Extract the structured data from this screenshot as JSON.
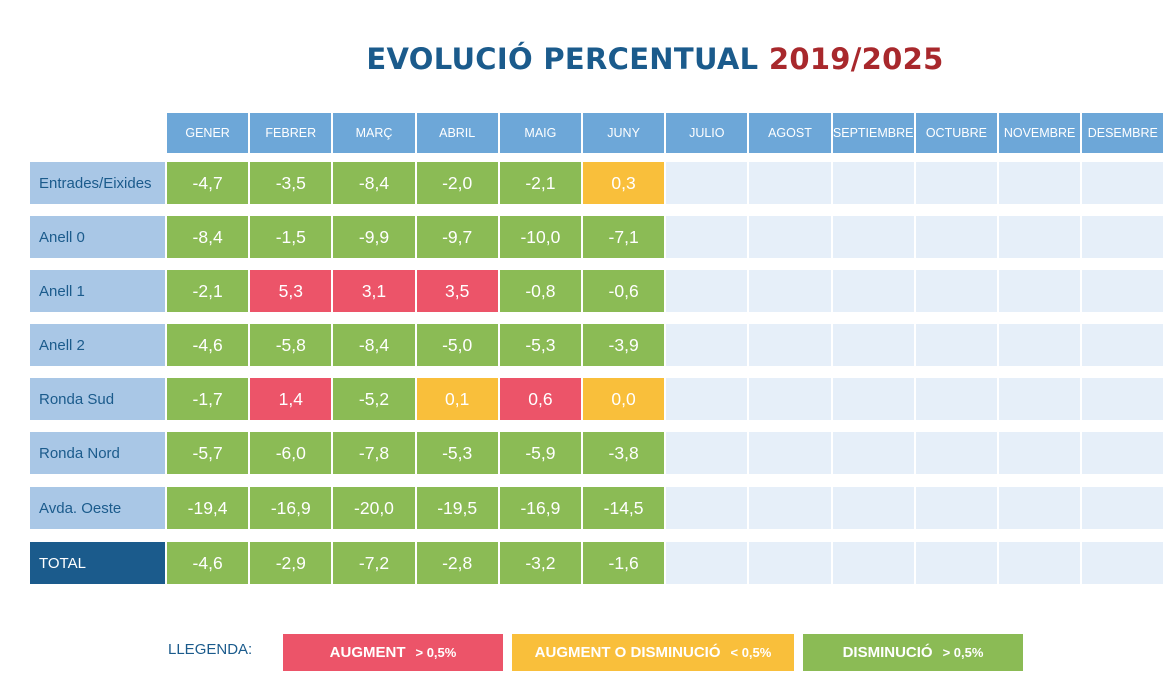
{
  "title": {
    "main": "EVOLUCIÓ PERCENTUAL",
    "years": "2019/2025"
  },
  "colors": {
    "decrease": "#8bbb55",
    "neutral": "#f9bf3b",
    "increase": "#ec5469",
    "header": "#6da7d8",
    "row_label": "#a9c7e6",
    "total_label": "#1b5b8c",
    "empty": "#e6eff9"
  },
  "chart_data": {
    "type": "table",
    "columns": [
      "GENER",
      "FEBRER",
      "MARÇ",
      "ABRIL",
      "MAIG",
      "JUNY",
      "JULIO",
      "AGOST",
      "SEPTIEMBRE",
      "OCTUBRE",
      "NOVEMBRE",
      "DESEMBRE"
    ],
    "rows": [
      {
        "label": "Entrades/Eixides",
        "values": [
          "-4,7",
          "-3,5",
          "-8,4",
          "-2,0",
          "-2,1",
          "0,3"
        ],
        "status": [
          "decrease",
          "decrease",
          "decrease",
          "decrease",
          "decrease",
          "neutral"
        ]
      },
      {
        "label": "Anell 0",
        "values": [
          "-8,4",
          "-1,5",
          "-9,9",
          "-9,7",
          "-10,0",
          "-7,1"
        ],
        "status": [
          "decrease",
          "decrease",
          "decrease",
          "decrease",
          "decrease",
          "decrease"
        ]
      },
      {
        "label": "Anell 1",
        "values": [
          "-2,1",
          "5,3",
          "3,1",
          "3,5",
          "-0,8",
          "-0,6"
        ],
        "status": [
          "decrease",
          "increase",
          "increase",
          "increase",
          "decrease",
          "decrease"
        ]
      },
      {
        "label": "Anell 2",
        "values": [
          "-4,6",
          "-5,8",
          "-8,4",
          "-5,0",
          "-5,3",
          "-3,9"
        ],
        "status": [
          "decrease",
          "decrease",
          "decrease",
          "decrease",
          "decrease",
          "decrease"
        ]
      },
      {
        "label": "Ronda Sud",
        "values": [
          "-1,7",
          "1,4",
          "-5,2",
          "0,1",
          "0,6",
          "0,0"
        ],
        "status": [
          "decrease",
          "increase",
          "decrease",
          "neutral",
          "increase",
          "neutral"
        ]
      },
      {
        "label": "Ronda Nord",
        "values": [
          "-5,7",
          "-6,0",
          "-7,8",
          "-5,3",
          "-5,9",
          "-3,8"
        ],
        "status": [
          "decrease",
          "decrease",
          "decrease",
          "decrease",
          "decrease",
          "decrease"
        ]
      },
      {
        "label": "Avda. Oeste",
        "values": [
          "-19,4",
          "-16,9",
          "-20,0",
          "-19,5",
          "-16,9",
          "-14,5"
        ],
        "status": [
          "decrease",
          "decrease",
          "decrease",
          "decrease",
          "decrease",
          "decrease"
        ]
      },
      {
        "label": "TOTAL",
        "values": [
          "-4,6",
          "-2,9",
          "-7,2",
          "-2,8",
          "-3,2",
          "-1,6"
        ],
        "status": [
          "decrease",
          "decrease",
          "decrease",
          "decrease",
          "decrease",
          "decrease"
        ]
      }
    ]
  },
  "legend": {
    "label": "LLEGENDA:",
    "items": [
      {
        "name": "AUGMENT",
        "threshold": "> 0,5%",
        "status": "increase"
      },
      {
        "name": "AUGMENT O DISMINUCIÓ",
        "threshold": "< 0,5%",
        "status": "neutral"
      },
      {
        "name": "DISMINUCIÓ",
        "threshold": "> 0,5%",
        "status": "decrease"
      }
    ]
  }
}
